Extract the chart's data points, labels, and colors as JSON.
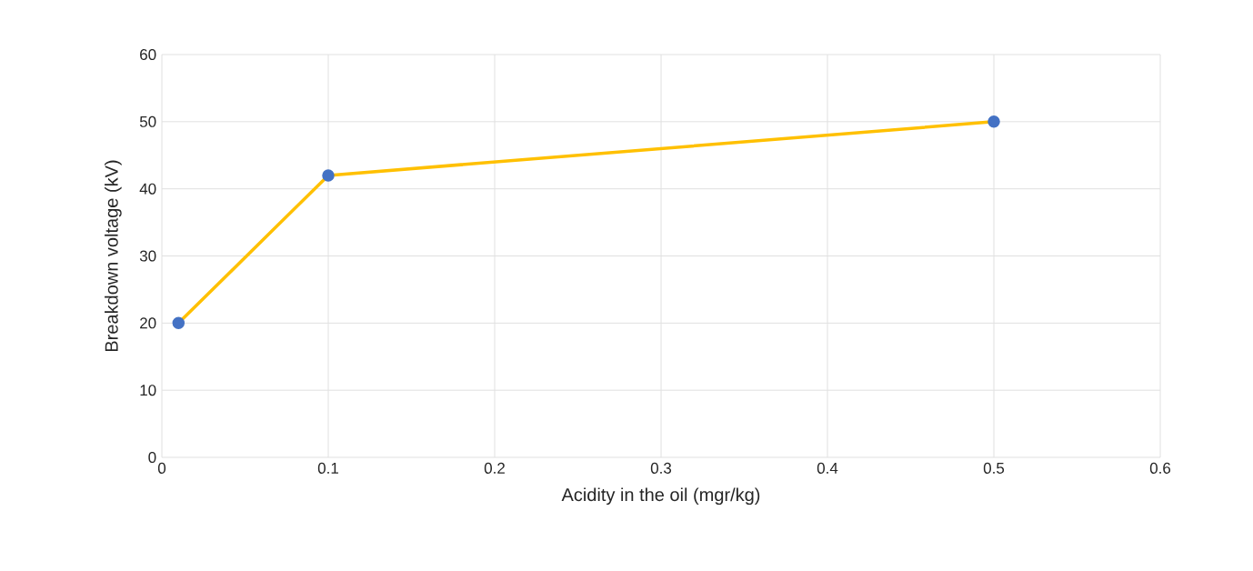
{
  "chart_data": {
    "type": "line",
    "xlabel": "Acidity in the oil (mgr/kg)",
    "ylabel": "Breakdown voltage (kV)",
    "x": [
      0.01,
      0.1,
      0.5
    ],
    "series": [
      {
        "color": "#ffc000",
        "values": [
          20,
          42,
          50
        ]
      }
    ],
    "xlim": [
      0,
      0.6
    ],
    "xticks": [
      0,
      0.1,
      0.2,
      0.3,
      0.4,
      0.5,
      0.6
    ],
    "ylim": [
      0,
      60
    ],
    "yticks": [
      0,
      10,
      20,
      30,
      40,
      50,
      60
    ],
    "grid": true,
    "marker": "circle",
    "line_style": "solid"
  }
}
